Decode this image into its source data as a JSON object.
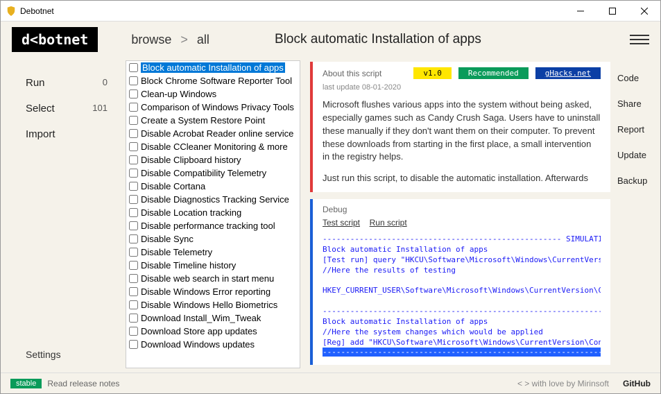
{
  "window": {
    "title": "Debotnet"
  },
  "logo": "d<botnet",
  "breadcrumb": {
    "a": "browse",
    "b": "all"
  },
  "page_title": "Block automatic Installation of apps",
  "nav": {
    "run": {
      "label": "Run",
      "count": "0"
    },
    "select": {
      "label": "Select",
      "count": "101"
    },
    "import": {
      "label": "Import"
    },
    "settings": "Settings"
  },
  "scripts": [
    "Block automatic Installation of apps",
    "Block Chrome Software Reporter Tool",
    "Clean-up Windows",
    "Comparison of Windows Privacy Tools",
    "Create a System Restore Point",
    "Disable Acrobat Reader online service",
    "Disable CCleaner Monitoring & more",
    "Disable Clipboard history",
    "Disable Compatibility Telemetry",
    "Disable Cortana",
    "Disable Diagnostics Tracking Service",
    "Disable Location tracking",
    "Disable performance tracking tool",
    "Disable Sync",
    "Disable Telemetry",
    "Disable Timeline history",
    "Disable web search in start menu",
    "Disable Windows Error reporting",
    "Disable Windows Hello Biometrics",
    "Download Install_Wim_Tweak",
    "Download Store app updates",
    "Download Windows updates"
  ],
  "about": {
    "label": "About this script",
    "version": "v1.0",
    "recommended": "Recommended",
    "source": "gHacks.net",
    "updated": "last update 08-01-2020",
    "desc1": "Microsoft flushes various apps into the system without being asked, especially games such as Candy Crush Saga. Users have to uninstall these manually if they don't want them on their computer. To prevent these downloads from starting in the first place, a small intervention in the registry helps.",
    "desc2": "Just run this script, to disable the automatic installation. Afterwards"
  },
  "debug": {
    "label": "Debug",
    "test": "Test script",
    "run": "Run script",
    "out1": "---------------------------------------------------- SIMULATION",
    "out2": "Block automatic Installation of apps",
    "out3": "[Test run] query \"HKCU\\Software\\Microsoft\\Windows\\CurrentVersion",
    "out4": "//Here the results of testing",
    "out5": "HKEY_CURRENT_USER\\Software\\Microsoft\\Windows\\CurrentVersion\\Cont",
    "out6": "---------------------------------------------------------------",
    "out7": "Block automatic Installation of apps",
    "out8": "//Here the system changes which would be applied",
    "out9": "[Reg] add \"HKCU\\Software\\Microsoft\\Windows\\CurrentVersion\\Conten",
    "out10": "----------------------------------------------------------------"
  },
  "side": {
    "code": "Code",
    "share": "Share",
    "report": "Report",
    "update": "Update",
    "backup": "Backup"
  },
  "footer": {
    "stable": "stable",
    "notes": "Read release notes",
    "love": "< >  with love by Mirinsoft",
    "github": "GitHub"
  }
}
